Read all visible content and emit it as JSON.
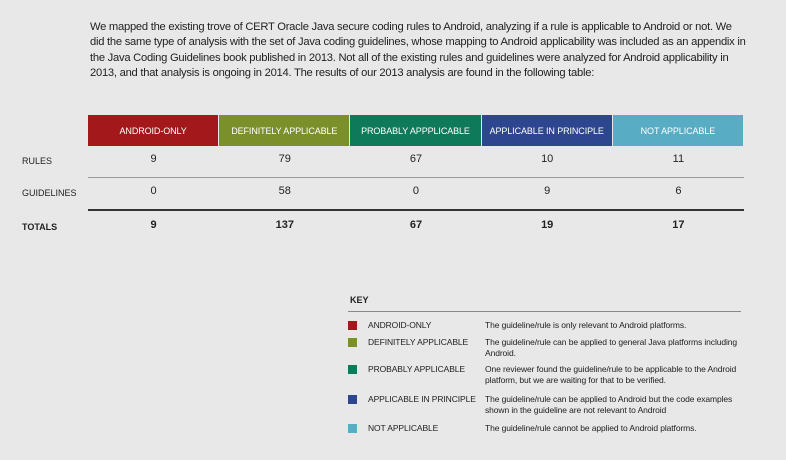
{
  "intro": "We mapped the existing trove of CERT Oracle Java secure coding rules to Android, analyzing if a rule is applicable to Android or not. We did the same type of analysis with the set of Java coding guidelines, whose mapping to Android applicability was included as an appendix in the Java Coding Guidelines book published in 2013. Not all of the existing rules and guidelines were analyzed for Android applicability in 2013, and that analysis is ongoing in 2014. The results of our 2013 analysis are found in the following table:",
  "table": {
    "columns": [
      {
        "label": "ANDROID-ONLY",
        "color": "#a3191b"
      },
      {
        "label": "DEFINITELY APPLICABLE",
        "color": "#7b8f2b"
      },
      {
        "label": "PROBABLY APPPLICABLE",
        "color": "#0e7a59"
      },
      {
        "label": "APPLICABLE IN PRINCIPLE",
        "color": "#2e4590"
      },
      {
        "label": "NOT APPLICABLE",
        "color": "#58adc5"
      }
    ],
    "rows": [
      {
        "label": "RULES",
        "values": [
          "9",
          "79",
          "67",
          "10",
          "11"
        ]
      },
      {
        "label": "GUIDELINES",
        "values": [
          "0",
          "58",
          "0",
          "9",
          "6"
        ]
      },
      {
        "label": "TOTALS",
        "values": [
          "9",
          "137",
          "67",
          "19",
          "17"
        ]
      }
    ]
  },
  "key": {
    "title": "KEY",
    "items": [
      {
        "label": "ANDROID-ONLY",
        "description": "The guideline/rule is only relevant to Android platforms.",
        "color": "#a3191b"
      },
      {
        "label": "DEFINITELY APPLICABLE",
        "description": "The guideline/rule can be applied to general Java platforms including Android.",
        "color": "#7b8f2b"
      },
      {
        "label": "PROBABLY APPLICABLE",
        "description": "One reviewer found the guideline/rule to be applicable to the Android platform, but we are waiting for that to be verified.",
        "color": "#0e7a59"
      },
      {
        "label": "APPLICABLE IN PRINCIPLE",
        "description": "The guideline/rule can be applied to Android but the code examples shown in the guideline are not relevant to Android",
        "color": "#2e4590"
      },
      {
        "label": "NOT APPLICABLE",
        "description": "The guideline/rule cannot be applied to Android platforms.",
        "color": "#58adc5"
      }
    ]
  }
}
